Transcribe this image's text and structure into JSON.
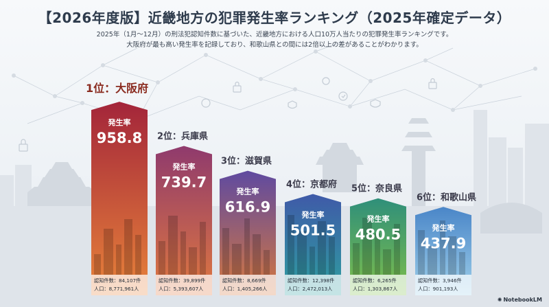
{
  "header": {
    "title": "【2026年度版】近畿地方の犯罪発生率ランキング（2025年確定データ）",
    "subtitle_line1": "2025年（1月〜12月）の刑法犯認知件数に基づいた、近畿地方における人口10万人当たりの犯罪発生率ランキングです。",
    "subtitle_line2": "大阪府が最も高い発生率を記録しており、和歌山県との間には2倍以上の差があることがわかります。"
  },
  "chart_data": {
    "type": "bar",
    "value_label": "発生率",
    "categories": [
      "1位：大阪府",
      "2位：兵庫県",
      "3位：滋賀県",
      "4位：京都府",
      "5位：奈良県",
      "6位：和歌山県"
    ],
    "values": [
      958.8,
      739.7,
      616.9,
      501.5,
      480.5,
      437.9
    ],
    "value_texts": [
      "958.8",
      "739.7",
      "616.9",
      "501.5",
      "480.5",
      "437.9"
    ],
    "stat_lines_1": [
      "認知件数：84,107件",
      "認知件数：39,899件",
      "認知件数：8,669件",
      "認知件数：12,398件",
      "認知件数：6,265件",
      "認知件数：3,946件"
    ],
    "stat_lines_2": [
      "人口：8,771,961人",
      "人口：5,393,607人",
      "人口：1,405,266人",
      "人口：2,472,013人",
      "人口：1,303,867人",
      "人口：901,193人"
    ],
    "colors_top": [
      "#a3253a",
      "#8f3a6d",
      "#5f4aa0",
      "#3f5aa8",
      "#2f8f7a",
      "#4a86c8"
    ],
    "colors_bottom": [
      "#e8833a",
      "#e0783f",
      "#d6783e",
      "#2e9fa0",
      "#7fbf4a",
      "#9fd0ea"
    ],
    "label_colors": [
      "#8a2b1f",
      "#3a3a4a",
      "#3a3a4a",
      "#3a3a4a",
      "#3a3a4a",
      "#3a3a4a"
    ]
  },
  "footer": {
    "brand": "NotebookLM"
  }
}
